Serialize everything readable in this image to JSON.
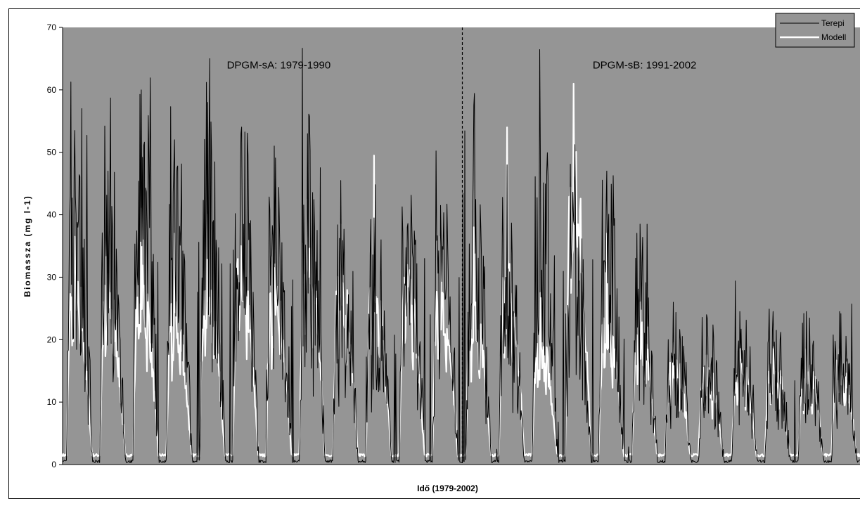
{
  "chart_data": {
    "type": "line",
    "xlabel": "Idő (1979-2002)",
    "ylabel": "Biomassza (mg l-1)",
    "ylim": [
      0,
      70
    ],
    "yticks": [
      0,
      10,
      20,
      30,
      40,
      50,
      60,
      70
    ],
    "xlim": [
      1979,
      2003
    ],
    "divider_x": 1991,
    "grid": false,
    "plot_background": "#959595",
    "legend_position": "top-right",
    "annotations": [
      {
        "text": "DPGM-sA: 1979-1990",
        "x": 1985.5,
        "y": 64
      },
      {
        "text": "DPGM-sB: 1991-2002",
        "x": 1996.5,
        "y": 64
      }
    ],
    "series": [
      {
        "name": "Terepi",
        "color": "#000000",
        "years": [
          1979,
          1980,
          1981,
          1982,
          1983,
          1984,
          1985,
          1986,
          1987,
          1988,
          1989,
          1990,
          1991,
          1992,
          1993,
          1994,
          1995,
          1996,
          1997,
          1998,
          1999,
          2000,
          2001,
          2002
        ],
        "annual_peak": [
          53.5,
          47,
          60,
          52,
          58,
          53,
          51,
          53,
          45.5,
          39.5,
          38,
          41.5,
          57.5,
          48,
          50.5,
          39,
          47,
          38.5,
          26,
          24,
          24.5,
          24.5,
          24.5,
          24.5
        ],
        "spring_peak": [
          46,
          41,
          52.5,
          40.5,
          44,
          44,
          38,
          42,
          30,
          30,
          36,
          38,
          36,
          33,
          42.5,
          35.5,
          38.5,
          27,
          20,
          17,
          17,
          17,
          17,
          17
        ],
        "annual_min": [
          0.5,
          0.5,
          0.5,
          0.5,
          0.5,
          0.5,
          0.5,
          0.5,
          0.5,
          0.5,
          0.5,
          0.5,
          0.5,
          0.5,
          0.5,
          0.5,
          0.5,
          0.5,
          0.5,
          0.5,
          0.5,
          0.5,
          0.5,
          0.5
        ]
      },
      {
        "name": "Modell",
        "color": "#ffffff",
        "years": [
          1979,
          1980,
          1981,
          1982,
          1983,
          1984,
          1985,
          1986,
          1987,
          1988,
          1989,
          1990,
          1991,
          1992,
          1993,
          1994,
          1995,
          1996,
          1997,
          1998,
          1999,
          2000,
          2001,
          2002
        ],
        "annual_peak": [
          36.5,
          30.5,
          41,
          37,
          40,
          35,
          31.5,
          42.5,
          38.5,
          49.5,
          32,
          36.5,
          38,
          54,
          27.5,
          61,
          37,
          26,
          19.5,
          17.5,
          18.5,
          18.5,
          18.5,
          18.5
        ],
        "spring_peak": [
          28,
          26,
          28,
          23,
          27.5,
          30,
          27,
          35,
          28,
          27,
          28,
          25.5,
          24,
          30,
          18,
          45.5,
          22,
          20,
          16,
          14,
          15,
          15,
          15,
          15
        ],
        "annual_min": [
          1.5,
          1.5,
          1.5,
          1.5,
          1.5,
          1.5,
          1.5,
          1.5,
          1.5,
          1.5,
          1.5,
          1.5,
          1.5,
          1.5,
          1.5,
          1.5,
          1.5,
          1.5,
          1.5,
          1.5,
          1.5,
          1.5,
          1.5,
          1.5
        ]
      }
    ]
  }
}
